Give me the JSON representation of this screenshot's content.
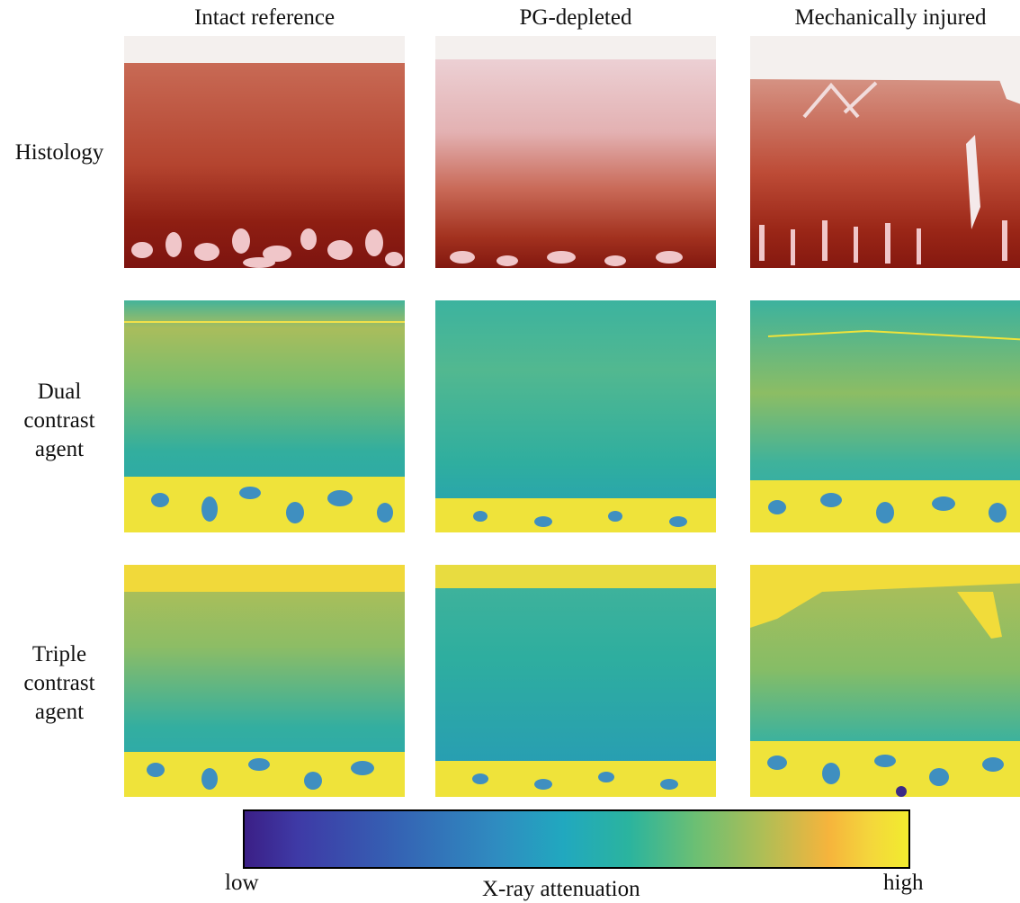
{
  "columns": [
    "Intact reference",
    "PG-depleted",
    "Mechanically injured"
  ],
  "rows": [
    {
      "id": "histology",
      "label": "Histology"
    },
    {
      "id": "dual",
      "label": "Dual contrast agent"
    },
    {
      "id": "triple",
      "label": "Triple contrast agent"
    }
  ],
  "colorbar": {
    "low_label": "low",
    "high_label": "high",
    "title": "X-ray attenuation",
    "colors": [
      "#3b1f86",
      "#3560b3",
      "#21a8bf",
      "#6cbf73",
      "#f6b43c",
      "#f2ec2e"
    ]
  }
}
